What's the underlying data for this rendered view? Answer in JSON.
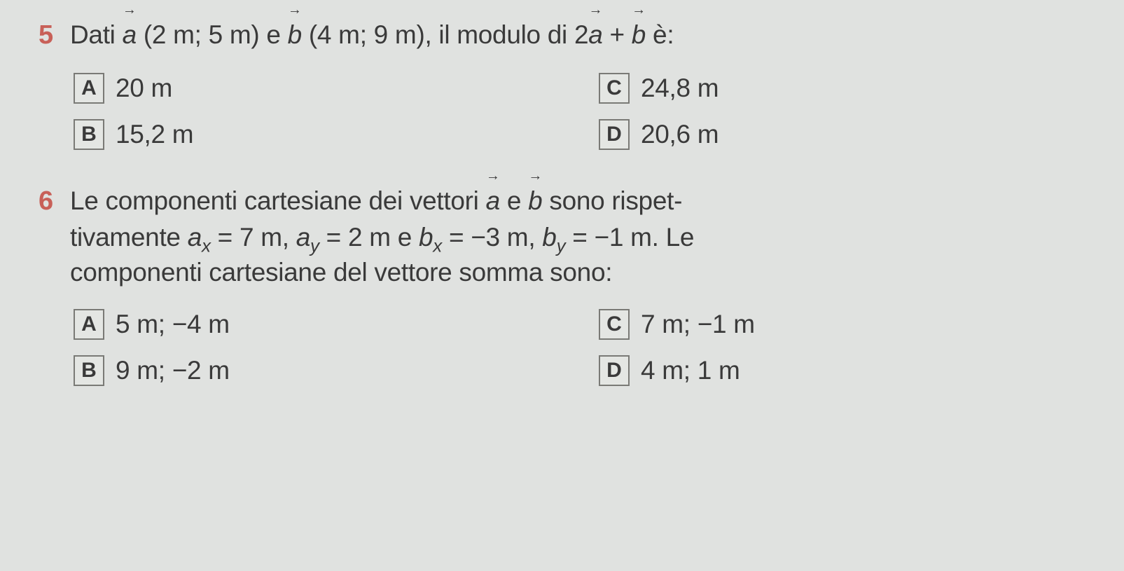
{
  "colors": {
    "page_bg": "#e0e2e0",
    "text": "#3a3a3a",
    "accent": "#c86058",
    "box_border": "#7a7a76",
    "box_bg": "#e4e6e3"
  },
  "typography": {
    "question_fontsize": 37,
    "option_fontsize": 37,
    "number_fontsize": 38,
    "letter_fontsize": 30,
    "arrow_fontsize": 20,
    "sub_fontsize": 26,
    "option_box_size": 44,
    "option_box_border_width": 2
  },
  "questions": [
    {
      "number": "5",
      "prefix": "Dati ",
      "vec1": "a",
      "mid1": " (2 m; 5 m) e ",
      "vec2": "b",
      "mid2": " (4 m; 9 m), il modulo di 2",
      "vec3": "a",
      "plus": " + ",
      "vec4": "b",
      "suffix": " è:",
      "options": [
        {
          "letter": "A",
          "text": "20 m"
        },
        {
          "letter": "C",
          "text": "24,8 m"
        },
        {
          "letter": "B",
          "text": "15,2 m"
        },
        {
          "letter": "D",
          "text": "20,6 m"
        }
      ]
    },
    {
      "number": "6",
      "line1_prefix": "Le componenti cartesiane dei vettori ",
      "line1_vec1": "a",
      "line1_mid": " e ",
      "line1_vec2": "b",
      "line1_suffix": " sono rispet-",
      "line2_t1": "tivamente ",
      "line2_ax_var": "a",
      "line2_ax_sub": "x",
      "line2_ax_eq": " = 7 m, ",
      "line2_ay_var": "a",
      "line2_ay_sub": "y",
      "line2_ay_eq": " = 2 m e ",
      "line2_bx_var": "b",
      "line2_bx_sub": "x",
      "line2_bx_eq": " = −3 m, ",
      "line2_by_var": "b",
      "line2_by_sub": "y",
      "line2_by_eq": " = −1 m. Le",
      "line3": "componenti cartesiane del vettore somma sono:",
      "options": [
        {
          "letter": "A",
          "text": "5 m; −4 m"
        },
        {
          "letter": "C",
          "text": "7 m; −1 m"
        },
        {
          "letter": "B",
          "text": "9 m; −2 m"
        },
        {
          "letter": "D",
          "text": "4 m; 1 m"
        }
      ]
    }
  ]
}
